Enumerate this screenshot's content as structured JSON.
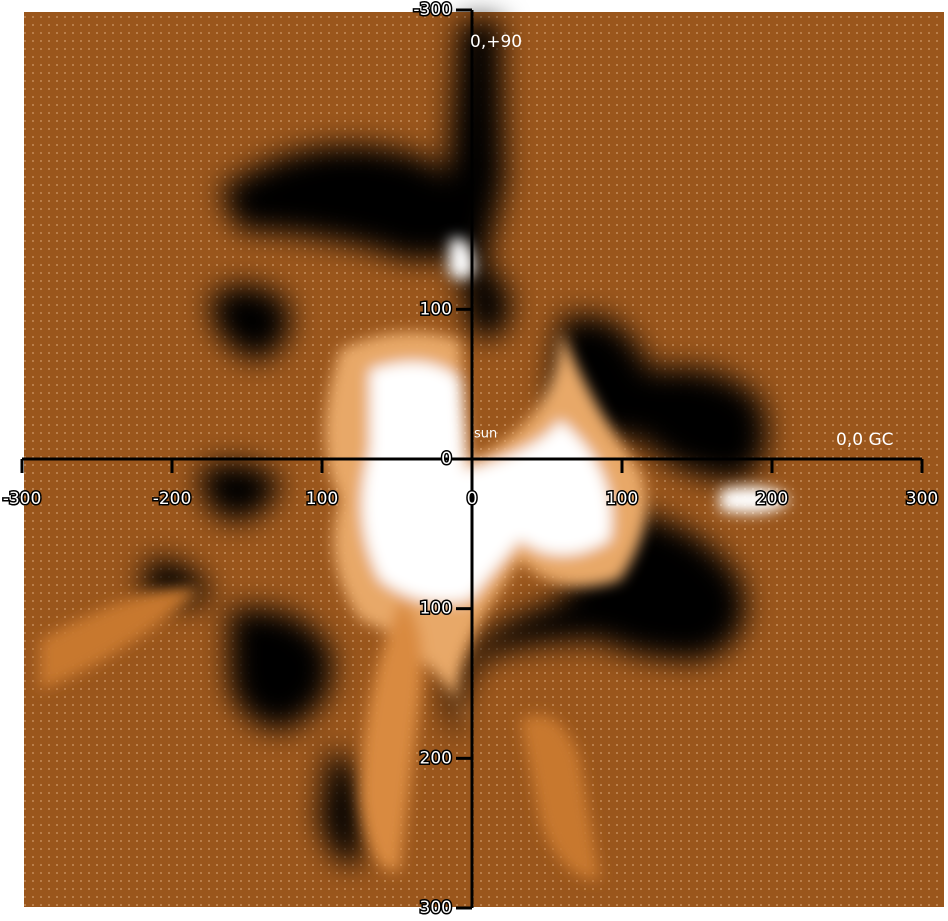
{
  "chart_data": {
    "type": "map",
    "xlim": [
      -300,
      300
    ],
    "ylim": [
      -300,
      300
    ],
    "xticks": [
      -300,
      -200,
      {
        "value": -100,
        "label": "100"
      },
      0,
      100,
      200,
      300
    ],
    "yticks": [
      -300,
      {
        "value": -100,
        "label": "100"
      },
      0,
      100,
      200,
      300
    ],
    "annotations": [
      "0,+90",
      "0,0 GC",
      "sun"
    ]
  }
}
